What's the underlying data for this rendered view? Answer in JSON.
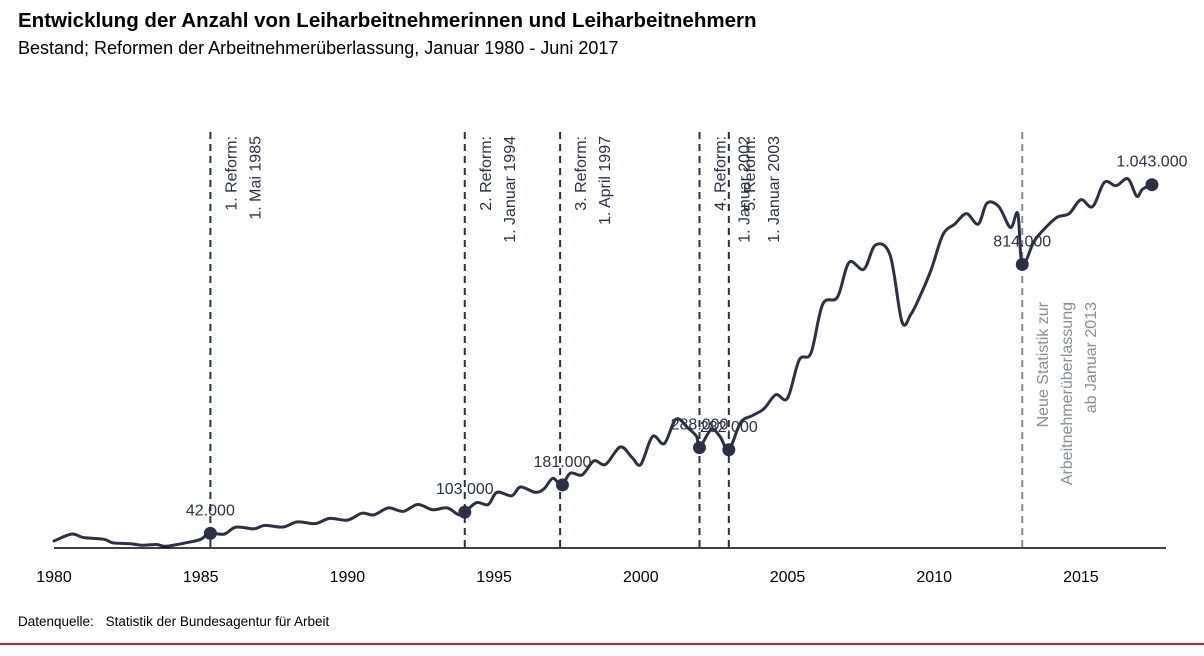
{
  "title": "Entwicklung der Anzahl von Leiharbeitnehmerinnen und Leiharbeitnehmern",
  "subtitle": "Bestand; Reformen der Arbeitnehmerüberlassung, Januar 1980 - Juni 2017",
  "source": {
    "label": "Datenquelle:",
    "text": "Statistik der Bundesagentur für Arbeit"
  },
  "colors": {
    "line": "#2b3044",
    "reform": "#2b3044",
    "stat": "#8a8c96",
    "footer": "#d0202e",
    "axis": "#000000"
  },
  "chart_data": {
    "type": "line",
    "x_ticks": [
      1980,
      1985,
      1990,
      1995,
      2000,
      2005,
      2010,
      2015
    ],
    "xlim": [
      1980,
      2017.9
    ],
    "ylim": [
      0,
      1200000
    ],
    "grid": false,
    "series": [
      {
        "name": "Leiharbeitnehmerinnen und Leiharbeitnehmer",
        "points": [
          [
            1980,
            20000
          ],
          [
            1980.6,
            40000
          ],
          [
            1981,
            30000
          ],
          [
            1981.7,
            25000
          ],
          [
            1982,
            15000
          ],
          [
            1982.6,
            12000
          ],
          [
            1983,
            8000
          ],
          [
            1983.5,
            10000
          ],
          [
            1983.8,
            5000
          ],
          [
            1984.5,
            15000
          ],
          [
            1985,
            25000
          ],
          [
            1985.3,
            42000
          ],
          [
            1985.8,
            40000
          ],
          [
            1986.2,
            60000
          ],
          [
            1986.8,
            55000
          ],
          [
            1987.2,
            65000
          ],
          [
            1987.8,
            60000
          ],
          [
            1988.3,
            75000
          ],
          [
            1988.9,
            70000
          ],
          [
            1989.4,
            85000
          ],
          [
            1990,
            80000
          ],
          [
            1990.5,
            100000
          ],
          [
            1990.9,
            95000
          ],
          [
            1991.4,
            115000
          ],
          [
            1991.9,
            105000
          ],
          [
            1992.4,
            125000
          ],
          [
            1992.9,
            110000
          ],
          [
            1993.4,
            115000
          ],
          [
            1993.8,
            95000
          ],
          [
            1994,
            103000
          ],
          [
            1994.4,
            130000
          ],
          [
            1994.8,
            125000
          ],
          [
            1995.1,
            160000
          ],
          [
            1995.6,
            150000
          ],
          [
            1995.9,
            175000
          ],
          [
            1996.4,
            160000
          ],
          [
            1996.7,
            170000
          ],
          [
            1997,
            200000
          ],
          [
            1997.3,
            181000
          ],
          [
            1997.6,
            215000
          ],
          [
            1998,
            210000
          ],
          [
            1998.4,
            250000
          ],
          [
            1998.8,
            240000
          ],
          [
            1999.3,
            290000
          ],
          [
            1999.7,
            260000
          ],
          [
            2000,
            240000
          ],
          [
            2000.4,
            320000
          ],
          [
            2000.8,
            300000
          ],
          [
            2001.2,
            370000
          ],
          [
            2001.6,
            345000
          ],
          [
            2001.9,
            320000
          ],
          [
            2002,
            288000
          ],
          [
            2002.4,
            340000
          ],
          [
            2002.7,
            320000
          ],
          [
            2003,
            282000
          ],
          [
            2003.4,
            360000
          ],
          [
            2003.8,
            380000
          ],
          [
            2004.2,
            400000
          ],
          [
            2004.6,
            440000
          ],
          [
            2005,
            430000
          ],
          [
            2005.4,
            540000
          ],
          [
            2005.8,
            560000
          ],
          [
            2006.2,
            700000
          ],
          [
            2006.7,
            720000
          ],
          [
            2007.1,
            820000
          ],
          [
            2007.6,
            800000
          ],
          [
            2008,
            870000
          ],
          [
            2008.5,
            840000
          ],
          [
            2008.9,
            650000
          ],
          [
            2009.2,
            670000
          ],
          [
            2009.5,
            720000
          ],
          [
            2009.9,
            800000
          ],
          [
            2010.3,
            900000
          ],
          [
            2010.7,
            930000
          ],
          [
            2011.1,
            960000
          ],
          [
            2011.5,
            930000
          ],
          [
            2011.8,
            990000
          ],
          [
            2012.2,
            980000
          ],
          [
            2012.6,
            920000
          ],
          [
            2012.85,
            960000
          ],
          [
            2013,
            814000
          ],
          [
            2013.4,
            880000
          ],
          [
            2013.8,
            920000
          ],
          [
            2014.2,
            950000
          ],
          [
            2014.6,
            960000
          ],
          [
            2015,
            1000000
          ],
          [
            2015.4,
            980000
          ],
          [
            2015.8,
            1050000
          ],
          [
            2016.2,
            1040000
          ],
          [
            2016.6,
            1060000
          ],
          [
            2016.9,
            1010000
          ],
          [
            2017.1,
            1030000
          ],
          [
            2017.42,
            1043000
          ]
        ]
      }
    ],
    "highlighted_points": [
      {
        "x": 1985.33,
        "value": 42000,
        "label": "42.000"
      },
      {
        "x": 1994.0,
        "value": 103000,
        "label": "103.000"
      },
      {
        "x": 1997.33,
        "value": 181000,
        "label": "181.000"
      },
      {
        "x": 2002.0,
        "value": 288000,
        "label": "288.000"
      },
      {
        "x": 2003.0,
        "value": 282000,
        "label": "282.000"
      },
      {
        "x": 2013.0,
        "value": 814000,
        "label": "814.000"
      },
      {
        "x": 2017.42,
        "value": 1043000,
        "label": "1.043.000"
      }
    ],
    "annotations": [
      {
        "x": 1985.33,
        "line1": "1. Reform:",
        "line2": "1. Mai 1985",
        "kind": "reform"
      },
      {
        "x": 1994.0,
        "line1": "2. Reform:",
        "line2": "1. Januar 1994",
        "kind": "reform"
      },
      {
        "x": 1997.25,
        "line1": "3. Reform:",
        "line2": "1. April 1997",
        "kind": "reform"
      },
      {
        "x": 2002.0,
        "line1": "4. Reform:",
        "line2": "1. Januar 2002",
        "kind": "reform"
      },
      {
        "x": 2003.0,
        "line1": "5. Reform:",
        "line2": "1. Januar 2003",
        "kind": "reform"
      },
      {
        "x": 2013.0,
        "line1": "Neue Statistik zur",
        "line2": "Arbeitnehmerüberlassung",
        "line3": "ab Januar 2013",
        "kind": "statistics"
      }
    ]
  }
}
